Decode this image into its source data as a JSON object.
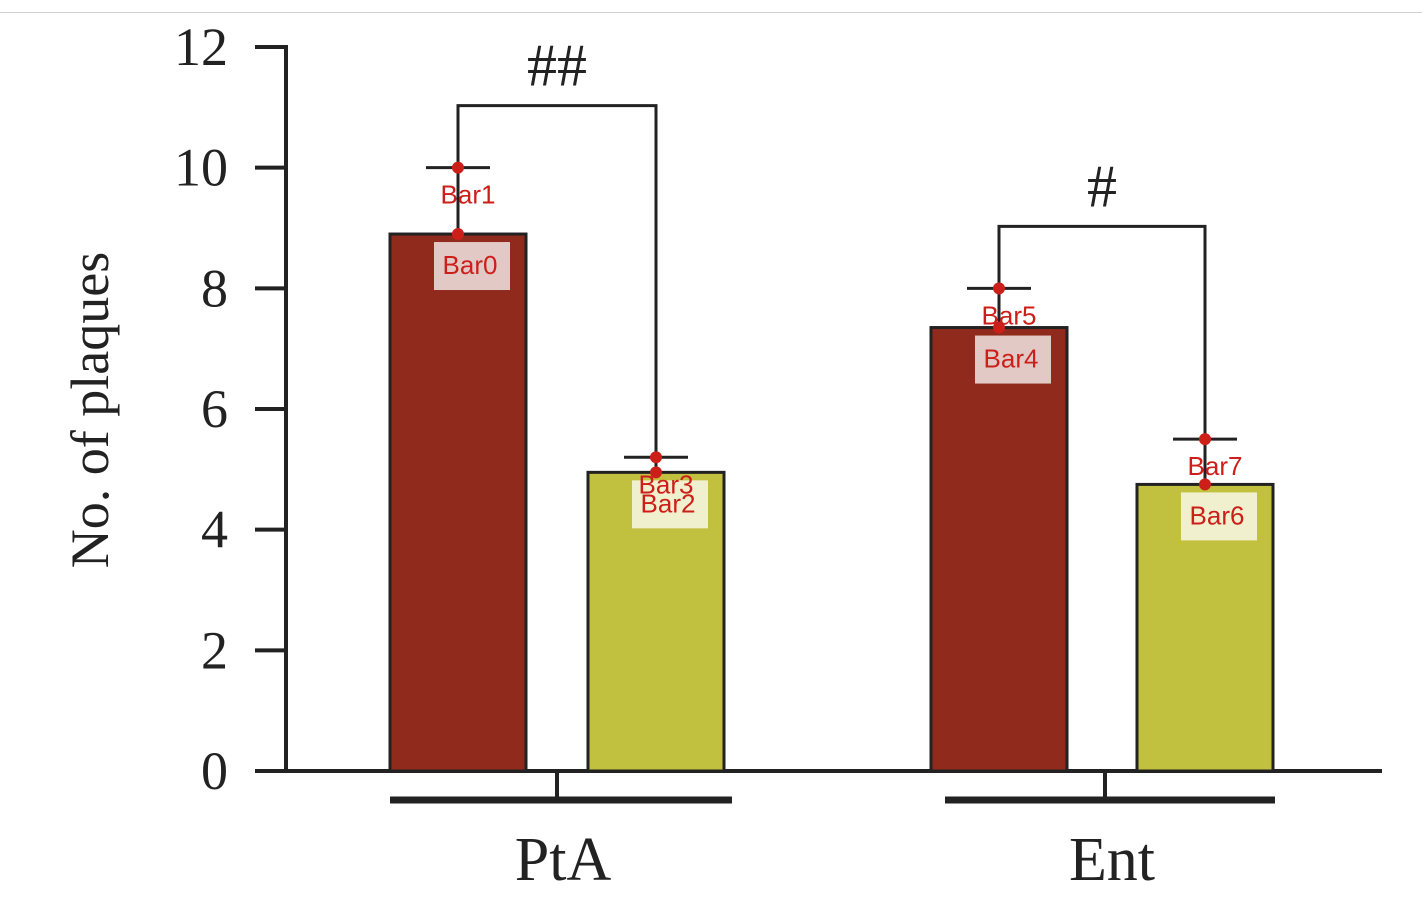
{
  "chart_data": {
    "type": "bar",
    "title": "",
    "xlabel": "",
    "ylabel": "No. of plaques",
    "ylim": [
      0,
      12
    ],
    "yticks": [
      "0",
      "2",
      "4",
      "6",
      "8",
      "10",
      "12"
    ],
    "groups": [
      "PtA",
      "Ent"
    ],
    "bars": [
      {
        "group": "PtA",
        "label": "Bar0",
        "value": 8.9,
        "err_top": 10.0,
        "err_label": "Bar1",
        "color": "#8f2a1c"
      },
      {
        "group": "PtA",
        "label": "Bar2",
        "value": 4.95,
        "err_top": 5.2,
        "err_label": "Bar3",
        "color": "#c2c03f"
      },
      {
        "group": "Ent",
        "label": "Bar4",
        "value": 7.35,
        "err_top": 8.0,
        "err_label": "Bar5",
        "color": "#8f2a1c"
      },
      {
        "group": "Ent",
        "label": "Bar6",
        "value": 4.75,
        "err_top": 5.5,
        "err_label": "Bar7",
        "color": "#c2c03f"
      }
    ],
    "significance": [
      {
        "group": "PtA",
        "label": "##"
      },
      {
        "group": "Ent",
        "label": "#"
      }
    ],
    "grid": false,
    "legend": "none"
  },
  "colors": {
    "dark_red": "#8f2a1c",
    "olive": "#c2c03f",
    "annotation": "#cc1f1a",
    "axis": "#222222"
  }
}
